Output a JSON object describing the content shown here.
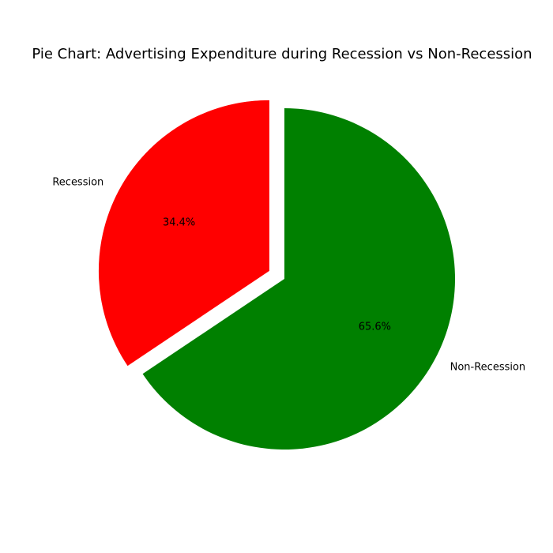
{
  "chart_data": {
    "type": "pie",
    "title": "Pie Chart: Advertising Expenditure during Recession vs Non-Recession",
    "start_angle_deg": 90,
    "counterclockwise": true,
    "slices": [
      {
        "label": "Recession",
        "value": 34.4,
        "pct_label": "34.4%",
        "color": "#ff0000",
        "exploded": true
      },
      {
        "label": "Non-Recession",
        "value": 65.6,
        "pct_label": "65.6%",
        "color": "#008000",
        "exploded": false
      }
    ]
  }
}
